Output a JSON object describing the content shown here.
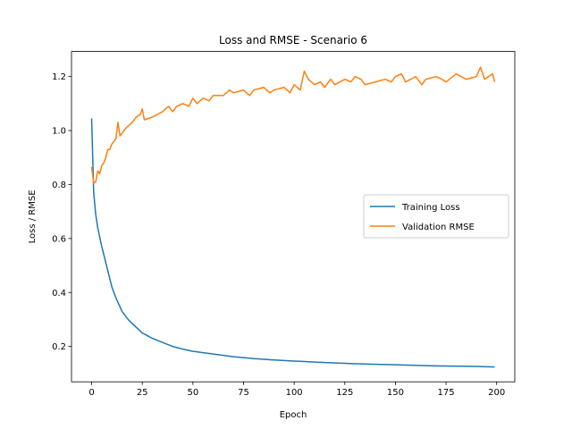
{
  "chart_data": {
    "type": "line",
    "title": "Loss and RMSE - Scenario 6",
    "xlabel": "Epoch",
    "ylabel": "Loss / RMSE",
    "xlim": [
      -9.95,
      208.95
    ],
    "ylim": [
      0.069,
      1.293
    ],
    "xticks": [
      "0",
      "25",
      "50",
      "75",
      "100",
      "125",
      "150",
      "175",
      "200"
    ],
    "yticks": [
      "0.2",
      "0.4",
      "0.6",
      "0.8",
      "1.0",
      "1.2"
    ],
    "grid": false,
    "legend_position": "center-right",
    "series": [
      {
        "name": "Training Loss",
        "color": "#1f77b4",
        "keypoints": [
          [
            0,
            1.045
          ],
          [
            1,
            0.77
          ],
          [
            2,
            0.69
          ],
          [
            3,
            0.64
          ],
          [
            5,
            0.57
          ],
          [
            8,
            0.48
          ],
          [
            10,
            0.42
          ],
          [
            12,
            0.38
          ],
          [
            15,
            0.33
          ],
          [
            18,
            0.3
          ],
          [
            20,
            0.285
          ],
          [
            25,
            0.25
          ],
          [
            30,
            0.23
          ],
          [
            35,
            0.215
          ],
          [
            40,
            0.2
          ],
          [
            45,
            0.19
          ],
          [
            50,
            0.182
          ],
          [
            60,
            0.172
          ],
          [
            70,
            0.162
          ],
          [
            80,
            0.155
          ],
          [
            90,
            0.15
          ],
          [
            100,
            0.146
          ],
          [
            110,
            0.142
          ],
          [
            120,
            0.139
          ],
          [
            130,
            0.136
          ],
          [
            140,
            0.134
          ],
          [
            150,
            0.132
          ],
          [
            160,
            0.13
          ],
          [
            170,
            0.128
          ],
          [
            180,
            0.127
          ],
          [
            190,
            0.126
          ],
          [
            199,
            0.124
          ]
        ]
      },
      {
        "name": "Validation RMSE",
        "color": "#ff7f0e",
        "keypoints": [
          [
            0,
            0.865
          ],
          [
            1,
            0.805
          ],
          [
            2,
            0.81
          ],
          [
            3,
            0.85
          ],
          [
            4,
            0.84
          ],
          [
            5,
            0.87
          ],
          [
            6,
            0.88
          ],
          [
            7,
            0.9
          ],
          [
            8,
            0.93
          ],
          [
            9,
            0.93
          ],
          [
            10,
            0.95
          ],
          [
            11,
            0.96
          ],
          [
            12,
            0.97
          ],
          [
            13,
            1.03
          ],
          [
            14,
            0.98
          ],
          [
            15,
            0.99
          ],
          [
            17,
            1.01
          ],
          [
            20,
            1.03
          ],
          [
            22,
            1.05
          ],
          [
            24,
            1.06
          ],
          [
            25,
            1.08
          ],
          [
            26,
            1.04
          ],
          [
            30,
            1.05
          ],
          [
            35,
            1.07
          ],
          [
            38,
            1.09
          ],
          [
            40,
            1.07
          ],
          [
            42,
            1.09
          ],
          [
            45,
            1.1
          ],
          [
            48,
            1.09
          ],
          [
            50,
            1.12
          ],
          [
            52,
            1.1
          ],
          [
            55,
            1.12
          ],
          [
            58,
            1.11
          ],
          [
            60,
            1.13
          ],
          [
            65,
            1.13
          ],
          [
            68,
            1.15
          ],
          [
            70,
            1.14
          ],
          [
            75,
            1.15
          ],
          [
            78,
            1.13
          ],
          [
            80,
            1.15
          ],
          [
            85,
            1.16
          ],
          [
            88,
            1.14
          ],
          [
            90,
            1.15
          ],
          [
            95,
            1.16
          ],
          [
            98,
            1.14
          ],
          [
            100,
            1.17
          ],
          [
            103,
            1.15
          ],
          [
            105,
            1.22
          ],
          [
            107,
            1.19
          ],
          [
            110,
            1.17
          ],
          [
            113,
            1.18
          ],
          [
            115,
            1.16
          ],
          [
            118,
            1.19
          ],
          [
            120,
            1.17
          ],
          [
            125,
            1.19
          ],
          [
            128,
            1.18
          ],
          [
            130,
            1.2
          ],
          [
            133,
            1.19
          ],
          [
            135,
            1.17
          ],
          [
            140,
            1.18
          ],
          [
            145,
            1.19
          ],
          [
            148,
            1.18
          ],
          [
            150,
            1.2
          ],
          [
            153,
            1.21
          ],
          [
            155,
            1.18
          ],
          [
            160,
            1.2
          ],
          [
            163,
            1.17
          ],
          [
            165,
            1.19
          ],
          [
            170,
            1.2
          ],
          [
            173,
            1.19
          ],
          [
            175,
            1.18
          ],
          [
            180,
            1.21
          ],
          [
            185,
            1.19
          ],
          [
            190,
            1.2
          ],
          [
            192,
            1.235
          ],
          [
            194,
            1.19
          ],
          [
            196,
            1.2
          ],
          [
            198,
            1.21
          ],
          [
            199,
            1.18
          ]
        ]
      }
    ]
  }
}
